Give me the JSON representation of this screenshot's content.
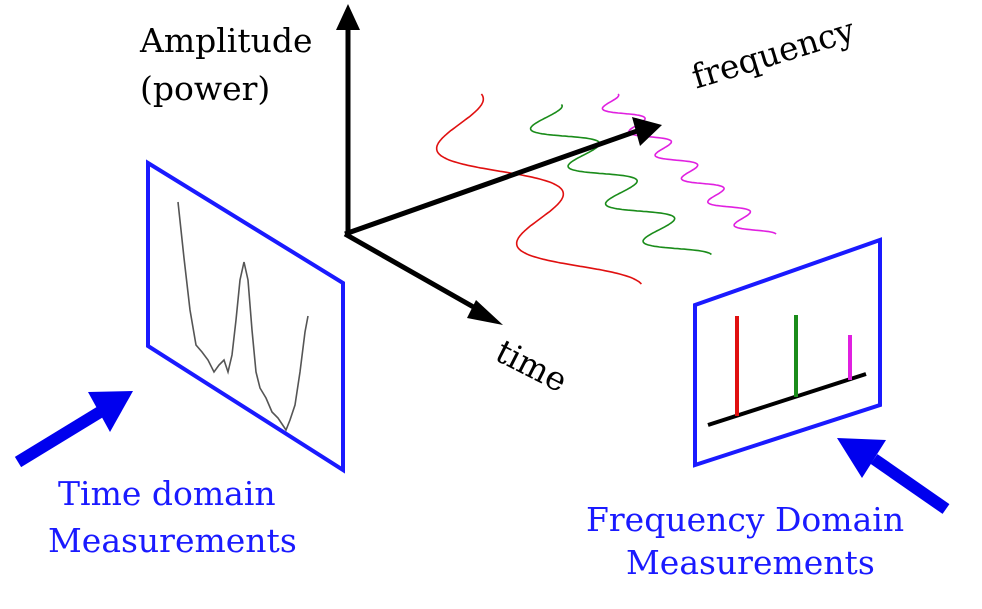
{
  "axes": {
    "amplitude_line1": "Amplitude",
    "amplitude_line2": "(power)",
    "frequency": "frequency",
    "time": "time"
  },
  "captions": {
    "time_line1": "Time domain",
    "time_line2": "Measurements",
    "freq_line1": "Frequency Domain",
    "freq_line2": "Measurements"
  },
  "colors": {
    "axis": "#000000",
    "panel": "#1a1aff",
    "caption": "#1a1aff",
    "pointer_arrow": "#0000ee",
    "wave_low": "#e01010",
    "wave_mid": "#1a8c1a",
    "wave_high": "#e020e0",
    "time_signal": "#555555"
  },
  "icons": [
    "arrow-up-icon",
    "arrow-right-icon",
    "arrow-down-right-icon",
    "pointer-arrow-icon"
  ],
  "spectrum": {
    "lines": [
      {
        "series": "low",
        "relative_amplitude": 1.0
      },
      {
        "series": "mid",
        "relative_amplitude": 0.82
      },
      {
        "series": "high",
        "relative_amplitude": 0.45
      }
    ]
  }
}
